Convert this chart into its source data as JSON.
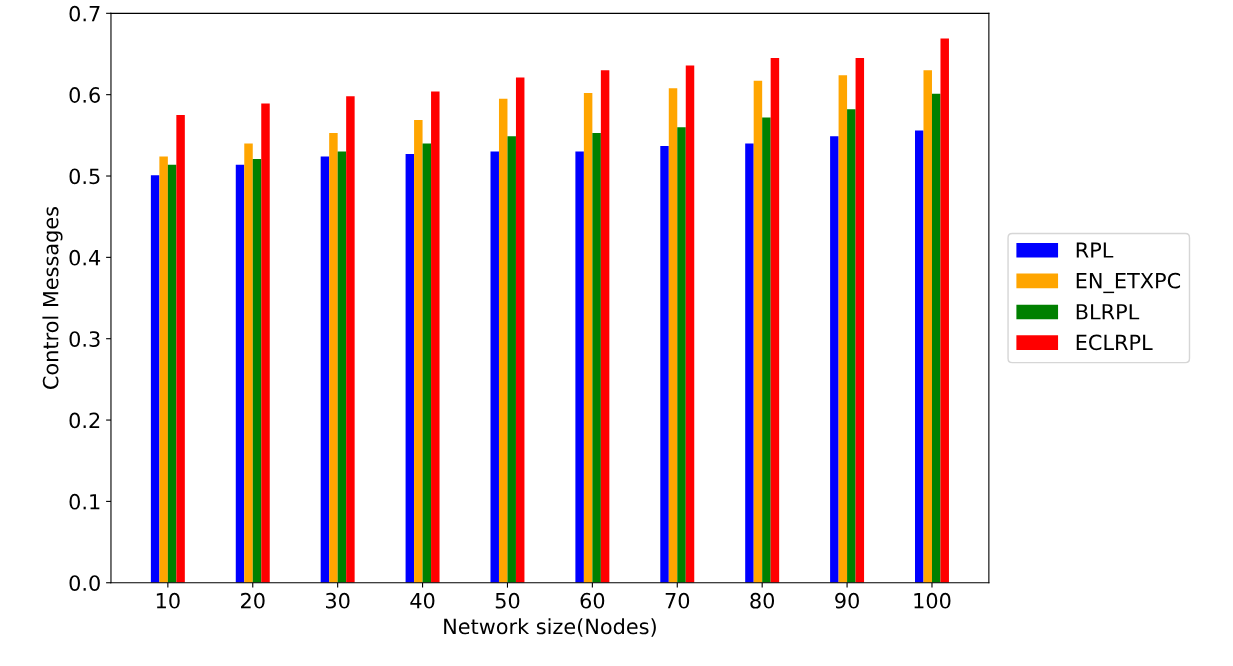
{
  "chart_data": {
    "type": "bar",
    "xlabel": "Network size(Nodes)",
    "ylabel": "Control Messages",
    "categories": [
      "10",
      "20",
      "30",
      "40",
      "50",
      "60",
      "70",
      "80",
      "90",
      "100"
    ],
    "series": [
      {
        "name": "RPL",
        "color": "#0000ff",
        "values": [
          0.501,
          0.514,
          0.524,
          0.527,
          0.53,
          0.53,
          0.537,
          0.54,
          0.549,
          0.556
        ]
      },
      {
        "name": "EN_ETXPC",
        "color": "#ffa500",
        "values": [
          0.524,
          0.54,
          0.553,
          0.569,
          0.595,
          0.602,
          0.608,
          0.617,
          0.624,
          0.63
        ]
      },
      {
        "name": "BLRPL",
        "color": "#008000",
        "values": [
          0.514,
          0.521,
          0.53,
          0.54,
          0.549,
          0.553,
          0.56,
          0.572,
          0.582,
          0.601
        ]
      },
      {
        "name": "ECLRPL",
        "color": "#ff0000",
        "values": [
          0.575,
          0.589,
          0.598,
          0.604,
          0.621,
          0.63,
          0.636,
          0.645,
          0.645,
          0.669
        ]
      }
    ],
    "ylim": [
      0,
      0.7
    ],
    "yticks": [
      {
        "value": 0,
        "label": "0.0"
      },
      0.1,
      0.2,
      0.3,
      0.4,
      0.5,
      0.6,
      0.7
    ],
    "grid": false,
    "legend": "right"
  }
}
